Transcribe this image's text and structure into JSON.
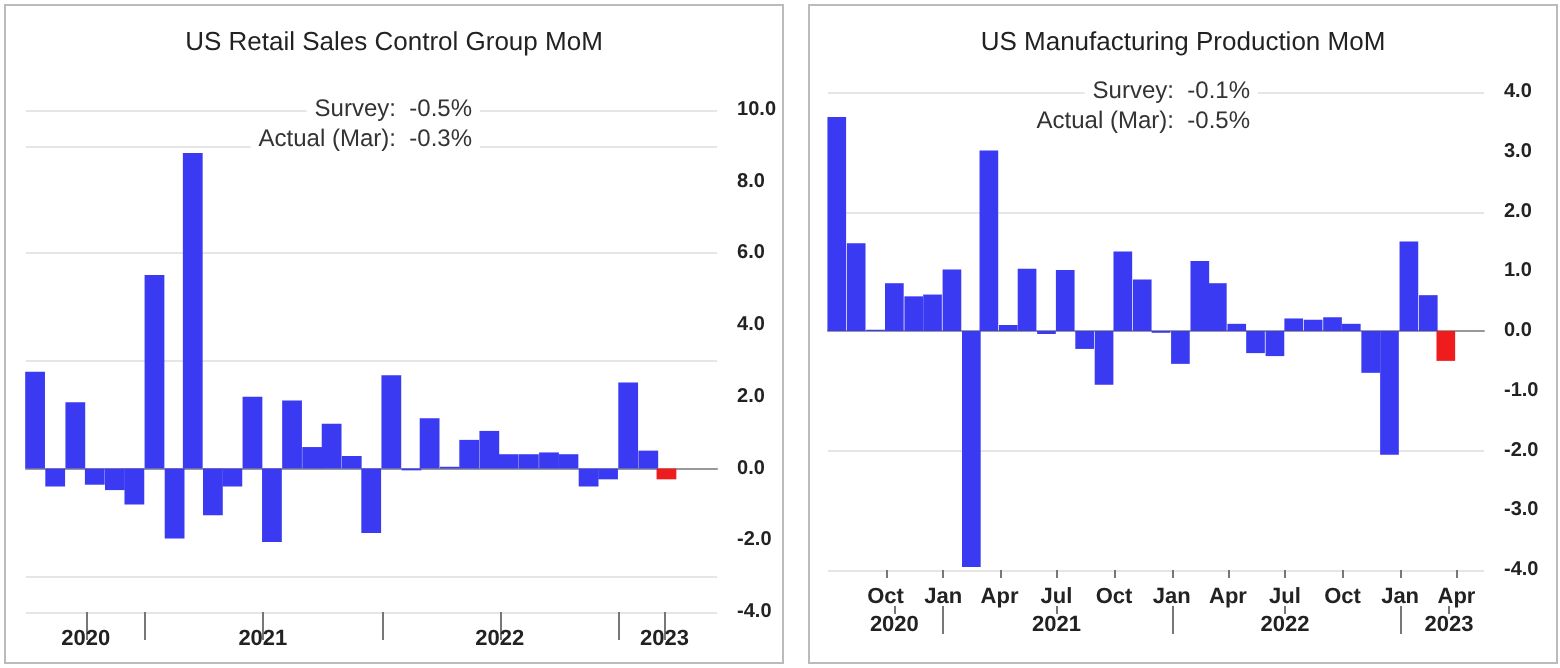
{
  "chart_data": [
    {
      "type": "bar",
      "title": "US Retail Sales Control Group MoM",
      "annotations": [
        "Survey:  -0.5%",
        "Actual (Mar):  -0.3%"
      ],
      "x": [
        "2020-07-15",
        "2020-08-15",
        "2020-09-15",
        "2020-10-15",
        "2020-11-15",
        "2020-12-15",
        "2021-01-15",
        "2021-02-15",
        "2021-03-15",
        "2021-04-15",
        "2021-05-15",
        "2021-06-15",
        "2021-07-15",
        "2021-08-15",
        "2021-09-15",
        "2021-10-15",
        "2021-11-15",
        "2021-12-15",
        "2022-01-15",
        "2022-02-15",
        "2022-03-15",
        "2022-04-15",
        "2022-05-15",
        "2022-06-15",
        "2022-07-15",
        "2022-08-15",
        "2022-09-15",
        "2022-10-15",
        "2022-11-15",
        "2022-12-15",
        "2023-01-15",
        "2023-02-15",
        "2023-03-15"
      ],
      "values": [
        2.7,
        -0.5,
        1.85,
        -0.45,
        -0.6,
        -1.0,
        5.4,
        -1.95,
        8.8,
        -1.3,
        -0.5,
        2.0,
        -2.05,
        1.9,
        0.6,
        1.25,
        0.35,
        -1.8,
        2.6,
        -0.05,
        1.4,
        0.05,
        0.8,
        1.05,
        0.4,
        0.4,
        0.45,
        0.4,
        -0.5,
        -0.3,
        2.4,
        0.5,
        -0.3
      ],
      "colors": [
        "#3a3af2",
        "#3a3af2",
        "#3a3af2",
        "#3a3af2",
        "#3a3af2",
        "#3a3af2",
        "#3a3af2",
        "#3a3af2",
        "#3a3af2",
        "#3a3af2",
        "#3a3af2",
        "#3a3af2",
        "#3a3af2",
        "#3a3af2",
        "#3a3af2",
        "#3a3af2",
        "#3a3af2",
        "#3a3af2",
        "#3a3af2",
        "#3a3af2",
        "#3a3af2",
        "#3a3af2",
        "#3a3af2",
        "#3a3af2",
        "#3a3af2",
        "#3a3af2",
        "#3a3af2",
        "#3a3af2",
        "#3a3af2",
        "#3a3af2",
        "#3a3af2",
        "#3a3af2",
        "#ee1c1c"
      ],
      "xlim": [
        "2020-07-01",
        "2023-06-01"
      ],
      "xticks": [
        {
          "value": "2020-10-01",
          "label": "2020"
        },
        {
          "value": "2021-01-01",
          "label": null
        },
        {
          "value": "2021-07-01",
          "label": "2021"
        },
        {
          "value": "2022-01-01",
          "label": null
        },
        {
          "value": "2022-07-01",
          "label": "2022"
        },
        {
          "value": "2023-01-01",
          "label": null
        },
        {
          "value": "2023-03-12",
          "label": "2023"
        }
      ],
      "ylim": [
        -4,
        10
      ],
      "yticks": [
        {
          "value": -4,
          "label": "-4.0"
        },
        {
          "value": -2,
          "label": "-2.0"
        },
        {
          "value": 0,
          "label": "0.0"
        },
        {
          "value": 2,
          "label": "2.0"
        },
        {
          "value": 4,
          "label": "4.0"
        },
        {
          "value": 6,
          "label": "6.0"
        },
        {
          "value": 8,
          "label": "8.0"
        },
        {
          "value": 10,
          "label": "10.0"
        }
      ],
      "grid": "y"
    },
    {
      "type": "bar",
      "title": "US Manufacturing Production MoM",
      "annotations": [
        "Survey:  -0.1%",
        "Actual (Mar):  -0.5%"
      ],
      "x": [
        "2020-07-15",
        "2020-08-15",
        "2020-09-15",
        "2020-10-15",
        "2020-11-15",
        "2020-12-15",
        "2021-01-15",
        "2021-02-15",
        "2021-03-15",
        "2021-04-15",
        "2021-05-15",
        "2021-06-15",
        "2021-07-15",
        "2021-08-15",
        "2021-09-15",
        "2021-10-15",
        "2021-11-15",
        "2021-12-15",
        "2022-01-15",
        "2022-02-15",
        "2022-03-15",
        "2022-04-15",
        "2022-05-15",
        "2022-06-15",
        "2022-07-15",
        "2022-08-15",
        "2022-09-15",
        "2022-10-15",
        "2022-11-15",
        "2022-12-15",
        "2023-01-15",
        "2023-02-15",
        "2023-03-15"
      ],
      "values": [
        3.58,
        1.47,
        0.02,
        0.8,
        0.58,
        0.61,
        1.03,
        -3.95,
        3.02,
        0.1,
        1.04,
        -0.05,
        1.02,
        -0.3,
        -0.9,
        1.33,
        0.86,
        -0.03,
        -0.55,
        1.17,
        0.8,
        0.12,
        -0.37,
        -0.42,
        0.21,
        0.19,
        0.23,
        0.12,
        -0.7,
        -2.07,
        1.5,
        0.6,
        -0.5
      ],
      "colors": [
        "#3a3af2",
        "#3a3af2",
        "#3a3af2",
        "#3a3af2",
        "#3a3af2",
        "#3a3af2",
        "#3a3af2",
        "#3a3af2",
        "#3a3af2",
        "#3a3af2",
        "#3a3af2",
        "#3a3af2",
        "#3a3af2",
        "#3a3af2",
        "#3a3af2",
        "#3a3af2",
        "#3a3af2",
        "#3a3af2",
        "#3a3af2",
        "#3a3af2",
        "#3a3af2",
        "#3a3af2",
        "#3a3af2",
        "#3a3af2",
        "#3a3af2",
        "#3a3af2",
        "#3a3af2",
        "#3a3af2",
        "#3a3af2",
        "#3a3af2",
        "#3a3af2",
        "#3a3af2",
        "#ee1c1c"
      ],
      "xlim": [
        "2020-07-01",
        "2023-05-15"
      ],
      "xticks": [
        {
          "value": "2020-10-01",
          "label": "Oct"
        },
        {
          "value": "2021-01-01",
          "label": "Jan"
        },
        {
          "value": "2021-04-01",
          "label": "Apr"
        },
        {
          "value": "2021-07-01",
          "label": "Jul"
        },
        {
          "value": "2021-10-01",
          "label": "Oct"
        },
        {
          "value": "2022-01-01",
          "label": "Jan"
        },
        {
          "value": "2022-04-01",
          "label": "Apr"
        },
        {
          "value": "2022-07-01",
          "label": "Jul"
        },
        {
          "value": "2022-10-01",
          "label": "Oct"
        },
        {
          "value": "2023-01-01",
          "label": "Jan"
        },
        {
          "value": "2023-04-01",
          "label": "Apr"
        }
      ],
      "x2lim": [
        "2020-07-01",
        "2023-05-15"
      ],
      "x2ticks": [
        {
          "value": "2020-10-15",
          "label": "2020"
        },
        {
          "value": "2021-01-01",
          "label": null
        },
        {
          "value": "2021-07-01",
          "label": "2021"
        },
        {
          "value": "2022-01-01",
          "label": null
        },
        {
          "value": "2022-07-01",
          "label": "2022"
        },
        {
          "value": "2023-01-01",
          "label": null
        },
        {
          "value": "2023-03-20",
          "label": "2023"
        }
      ],
      "ylim": [
        -4,
        4
      ],
      "yticks": [
        {
          "value": -4,
          "label": "-4.0"
        },
        {
          "value": -3,
          "label": "-3.0"
        },
        {
          "value": -2,
          "label": "-2.0"
        },
        {
          "value": -1,
          "label": "-1.0"
        },
        {
          "value": 0,
          "label": "0.0"
        },
        {
          "value": 1,
          "label": "1.0"
        },
        {
          "value": 2,
          "label": "2.0"
        },
        {
          "value": 3,
          "label": "3.0"
        },
        {
          "value": 4,
          "label": "4.0"
        }
      ],
      "grid": "y"
    }
  ]
}
